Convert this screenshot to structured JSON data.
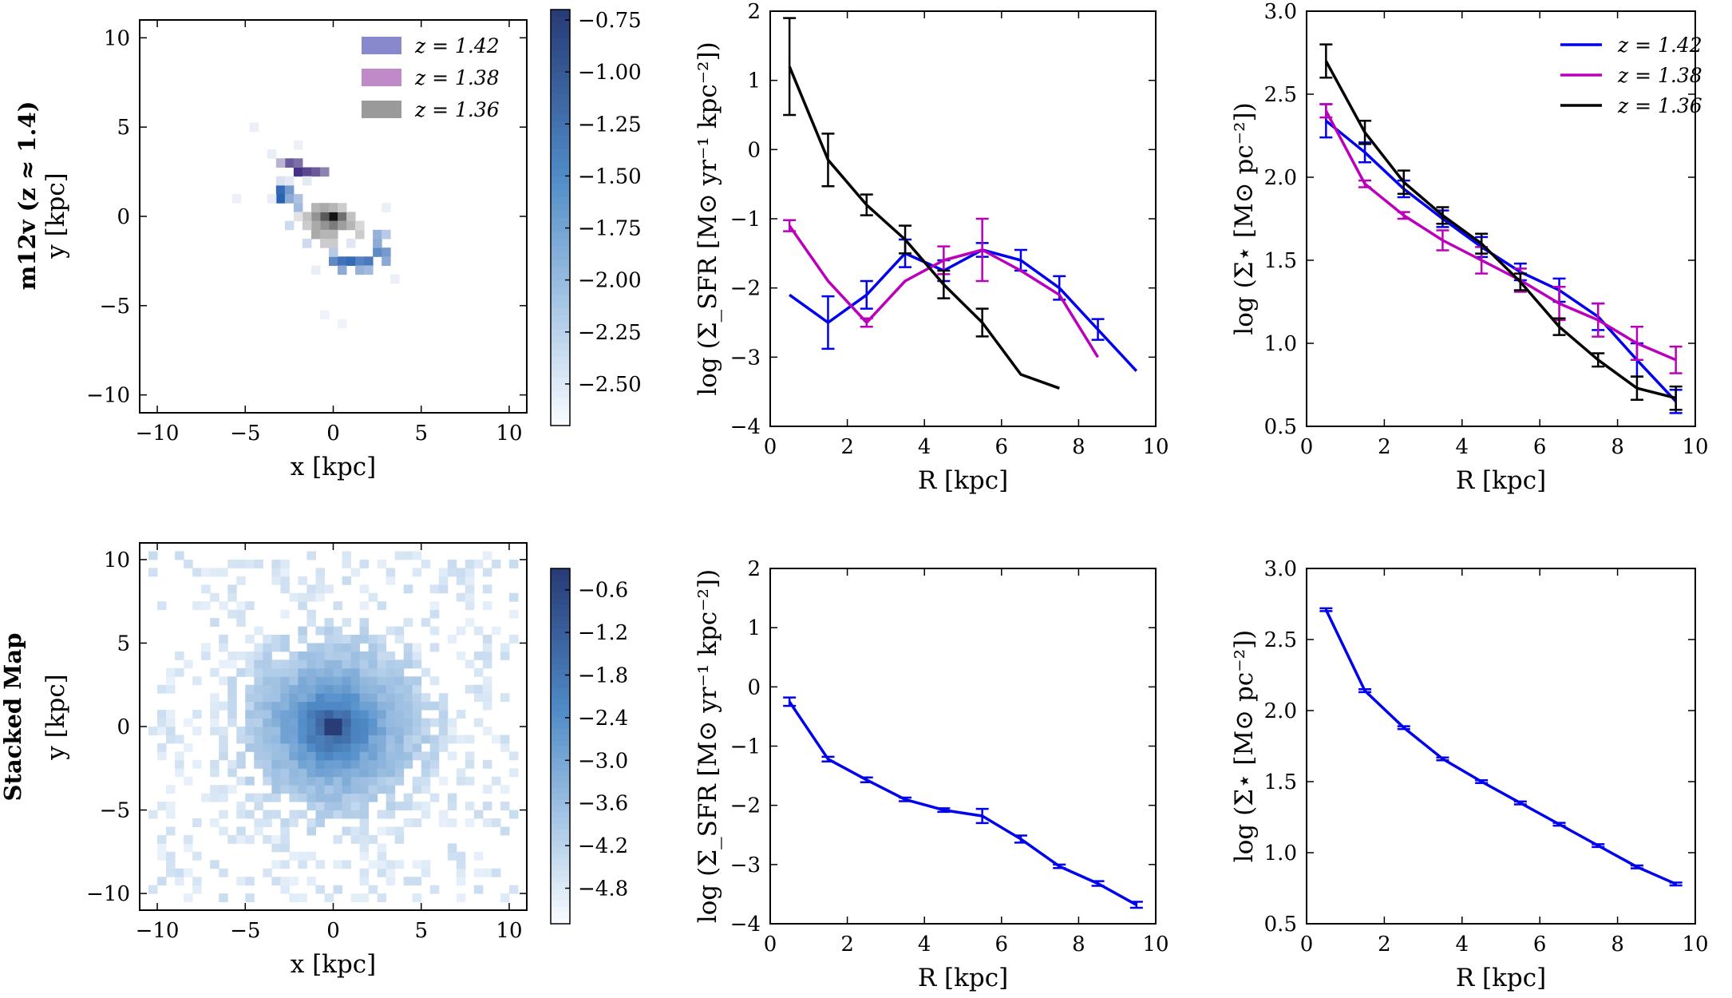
{
  "rows": [
    {
      "label_line1": "m12v (z ≈ 1.4)",
      "label_line2": "y [kpc]"
    },
    {
      "label_line1": "Stacked Map",
      "label_line2": "y [kpc]"
    }
  ],
  "chart_data": [
    {
      "type": "heatmap",
      "panel": "top-map",
      "xlabel": "x [kpc]",
      "ylabel": "y [kpc]",
      "xlim": [
        -11,
        11
      ],
      "ylim": [
        -11,
        11
      ],
      "xticks": [
        -10,
        -5,
        0,
        5,
        10
      ],
      "yticks": [
        -10,
        -5,
        0,
        5,
        10
      ],
      "legend": [
        {
          "label": "z = 1.42",
          "color": "#8888cc"
        },
        {
          "label": "z = 1.38",
          "color": "#c08ac8"
        },
        {
          "label": "z = 1.36",
          "color": "#9a9a9a"
        }
      ],
      "colorbar": {
        "range": [
          -2.7,
          -0.7
        ],
        "ticks": [
          "−0.75",
          "−1.00",
          "−1.25",
          "−1.50",
          "−1.75",
          "−2.00",
          "−2.25",
          "−2.50"
        ],
        "tick_values": [
          -0.75,
          -1.0,
          -1.25,
          -1.5,
          -1.75,
          -2.0,
          -2.25,
          -2.5
        ]
      },
      "cells": [
        {
          "x": -2.5,
          "y": 3.0,
          "v": 0.8,
          "c": "purple"
        },
        {
          "x": -2.0,
          "y": 2.5,
          "v": 1.0,
          "c": "purple"
        },
        {
          "x": -1.5,
          "y": 2.5,
          "v": 0.9,
          "c": "purple"
        },
        {
          "x": -1.0,
          "y": 2.5,
          "v": 0.8,
          "c": "purple"
        },
        {
          "x": -0.5,
          "y": 2.5,
          "v": 0.6,
          "c": "purple"
        },
        {
          "x": -3.0,
          "y": 3.0,
          "v": 0.35,
          "c": "purple"
        },
        {
          "x": -2.0,
          "y": 3.0,
          "v": 0.7,
          "c": "purple"
        },
        {
          "x": -3.0,
          "y": 1.5,
          "v": 0.9,
          "c": "blue"
        },
        {
          "x": -3.0,
          "y": 1.0,
          "v": 0.95,
          "c": "blue"
        },
        {
          "x": -2.5,
          "y": 1.5,
          "v": 0.6,
          "c": "blue"
        },
        {
          "x": -2.5,
          "y": 1.0,
          "v": 0.5,
          "c": "blue"
        },
        {
          "x": -2.0,
          "y": 0.5,
          "v": 0.4,
          "c": "blue"
        },
        {
          "x": -2.0,
          "y": 1.0,
          "v": 0.35,
          "c": "blue"
        },
        {
          "x": 0.0,
          "y": -2.5,
          "v": 0.7,
          "c": "blue"
        },
        {
          "x": 0.5,
          "y": -2.5,
          "v": 0.85,
          "c": "blue"
        },
        {
          "x": 1.0,
          "y": -2.5,
          "v": 0.9,
          "c": "blue"
        },
        {
          "x": 1.5,
          "y": -2.5,
          "v": 0.75,
          "c": "blue"
        },
        {
          "x": 2.0,
          "y": -2.5,
          "v": 0.8,
          "c": "blue"
        },
        {
          "x": 2.5,
          "y": -2.0,
          "v": 0.7,
          "c": "blue"
        },
        {
          "x": 3.0,
          "y": -2.0,
          "v": 0.6,
          "c": "blue"
        },
        {
          "x": 2.5,
          "y": -1.5,
          "v": 0.5,
          "c": "blue"
        },
        {
          "x": 2.5,
          "y": -1.0,
          "v": 0.45,
          "c": "blue"
        },
        {
          "x": 0.5,
          "y": -3.0,
          "v": 0.5,
          "c": "blue"
        },
        {
          "x": 1.5,
          "y": -3.0,
          "v": 0.45,
          "c": "blue"
        },
        {
          "x": 2.0,
          "y": -3.0,
          "v": 0.4,
          "c": "blue"
        },
        {
          "x": 3.0,
          "y": -2.5,
          "v": 0.5,
          "c": "blue"
        },
        {
          "x": 0.0,
          "y": -2.0,
          "v": 0.3,
          "c": "blue"
        },
        {
          "x": -1.5,
          "y": -1.5,
          "v": 0.2,
          "c": "blue"
        },
        {
          "x": -2.5,
          "y": -0.5,
          "v": 0.2,
          "c": "blue"
        },
        {
          "x": 3.0,
          "y": -1.0,
          "v": 0.3,
          "c": "blue"
        },
        {
          "x": -3.0,
          "y": 2.0,
          "v": 0.15,
          "c": "blue"
        },
        {
          "x": 0.0,
          "y": 0.0,
          "v": 1.0,
          "c": "gray"
        },
        {
          "x": -0.5,
          "y": 0.0,
          "v": 0.7,
          "c": "gray"
        },
        {
          "x": 0.5,
          "y": 0.0,
          "v": 0.6,
          "c": "gray"
        },
        {
          "x": 0.0,
          "y": -0.5,
          "v": 0.55,
          "c": "gray"
        },
        {
          "x": -0.5,
          "y": -0.5,
          "v": 0.45,
          "c": "gray"
        },
        {
          "x": 0.5,
          "y": -0.5,
          "v": 0.4,
          "c": "gray"
        },
        {
          "x": -1.0,
          "y": 0.0,
          "v": 0.45,
          "c": "gray"
        },
        {
          "x": -1.0,
          "y": -0.5,
          "v": 0.35,
          "c": "gray"
        },
        {
          "x": -1.0,
          "y": -1.0,
          "v": 0.35,
          "c": "gray"
        },
        {
          "x": -0.5,
          "y": -1.0,
          "v": 0.3,
          "c": "gray"
        },
        {
          "x": 0.0,
          "y": -1.0,
          "v": 0.3,
          "c": "gray"
        },
        {
          "x": 1.0,
          "y": -0.5,
          "v": 0.3,
          "c": "gray"
        },
        {
          "x": 1.0,
          "y": 0.0,
          "v": 0.25,
          "c": "gray"
        },
        {
          "x": -1.5,
          "y": 0.0,
          "v": 0.25,
          "c": "gray"
        },
        {
          "x": -1.5,
          "y": -0.5,
          "v": 0.2,
          "c": "gray"
        },
        {
          "x": -1.0,
          "y": 0.5,
          "v": 0.3,
          "c": "gray"
        },
        {
          "x": -0.5,
          "y": 0.5,
          "v": 0.35,
          "c": "gray"
        },
        {
          "x": 0.0,
          "y": 0.5,
          "v": 0.3,
          "c": "gray"
        },
        {
          "x": 0.5,
          "y": 0.5,
          "v": 0.2,
          "c": "gray"
        },
        {
          "x": 1.5,
          "y": -1.0,
          "v": 0.2,
          "c": "gray"
        },
        {
          "x": -0.5,
          "y": -1.5,
          "v": 0.2,
          "c": "gray"
        },
        {
          "x": 0.0,
          "y": -1.5,
          "v": 0.2,
          "c": "gray"
        },
        {
          "x": -2.0,
          "y": 0.0,
          "v": 0.1,
          "c": "gray"
        },
        {
          "x": 1.5,
          "y": -0.5,
          "v": 0.15,
          "c": "gray"
        },
        {
          "x": -2.5,
          "y": 2.0,
          "v": 0.1,
          "c": "blue"
        },
        {
          "x": -1.5,
          "y": 2.0,
          "v": 0.1,
          "c": "blue"
        },
        {
          "x": 1.0,
          "y": -1.5,
          "v": 0.12,
          "c": "blue"
        },
        {
          "x": -1.0,
          "y": -3.0,
          "v": 0.08,
          "c": "blue"
        },
        {
          "x": -3.5,
          "y": 1.0,
          "v": 0.08,
          "c": "blue"
        },
        {
          "x": -4.5,
          "y": 5.0,
          "v": 0.07,
          "c": "blue"
        },
        {
          "x": -5.5,
          "y": 1.0,
          "v": 0.06,
          "c": "blue"
        },
        {
          "x": -0.5,
          "y": -5.5,
          "v": 0.05,
          "c": "blue"
        },
        {
          "x": 0.5,
          "y": -6.0,
          "v": 0.05,
          "c": "blue"
        },
        {
          "x": 3.5,
          "y": -3.5,
          "v": 0.07,
          "c": "blue"
        },
        {
          "x": 3.0,
          "y": 0.5,
          "v": 0.07,
          "c": "blue"
        },
        {
          "x": -3.5,
          "y": 3.5,
          "v": 0.08,
          "c": "blue"
        },
        {
          "x": -2.0,
          "y": 4.0,
          "v": 0.06,
          "c": "blue"
        }
      ]
    },
    {
      "type": "line",
      "panel": "top-sfr",
      "xlabel": "R [kpc]",
      "ylabel": "log (Σ_SFR [M⊙ yr⁻¹ kpc⁻²])",
      "xlim": [
        0,
        10
      ],
      "ylim": [
        -4,
        2
      ],
      "xticks": [
        0,
        2,
        4,
        6,
        8,
        10
      ],
      "yticks": [
        -4,
        -3,
        -2,
        -1,
        0,
        1,
        2
      ],
      "series": [
        {
          "name": "z = 1.42",
          "color": "#0000ee",
          "x": [
            0.5,
            1.5,
            2.5,
            3.5,
            4.5,
            5.5,
            6.5,
            7.5,
            8.5,
            9.5
          ],
          "y": [
            -2.1,
            -2.5,
            -2.1,
            -1.5,
            -1.75,
            -1.45,
            -1.6,
            -2.0,
            -2.6,
            -3.2
          ],
          "err": [
            0,
            0.38,
            0.2,
            0.2,
            0.15,
            0.1,
            0.15,
            0.17,
            0.15,
            0
          ]
        },
        {
          "name": "z = 1.38",
          "color": "#bb00bb",
          "x": [
            0.5,
            1.5,
            2.5,
            3.5,
            4.5,
            5.5,
            6.5,
            7.5,
            8.5
          ],
          "y": [
            -1.1,
            -1.9,
            -2.5,
            -1.9,
            -1.6,
            -1.45,
            -1.75,
            -2.1,
            -3.0
          ],
          "err": [
            0.08,
            0,
            0.06,
            0,
            0.2,
            0.45,
            0,
            0,
            0
          ]
        },
        {
          "name": "z = 1.36",
          "color": "#000000",
          "x": [
            0.5,
            1.5,
            2.5,
            3.5,
            4.5,
            5.5,
            6.5,
            7.5
          ],
          "y": [
            1.2,
            -0.15,
            -0.8,
            -1.3,
            -1.95,
            -2.5,
            -3.25,
            -3.45
          ],
          "err": [
            0.7,
            0.38,
            0.15,
            0.2,
            0.2,
            0.2,
            0,
            0
          ]
        }
      ]
    },
    {
      "type": "line",
      "panel": "top-stellar",
      "xlabel": "R [kpc]",
      "ylabel": "log (Σ⋆ [M⊙ pc⁻²])",
      "xlim": [
        0,
        10
      ],
      "ylim": [
        0.5,
        3.0
      ],
      "xticks": [
        0,
        2,
        4,
        6,
        8,
        10
      ],
      "yticks": [
        0.5,
        1.0,
        1.5,
        2.0,
        2.5,
        3.0
      ],
      "legend": [
        {
          "label": "z = 1.42",
          "color": "#0000ee"
        },
        {
          "label": "z = 1.38",
          "color": "#bb00bb"
        },
        {
          "label": "z = 1.36",
          "color": "#000000"
        }
      ],
      "series": [
        {
          "name": "z = 1.42",
          "color": "#0000ee",
          "x": [
            0.5,
            1.5,
            2.5,
            3.5,
            4.5,
            5.5,
            6.5,
            7.5,
            8.5,
            9.5
          ],
          "y": [
            2.34,
            2.15,
            1.93,
            1.75,
            1.58,
            1.43,
            1.32,
            1.16,
            0.9,
            0.65
          ],
          "err": [
            0.1,
            0.06,
            0.05,
            0.05,
            0.06,
            0.05,
            0.07,
            0.08,
            0.1,
            0.07
          ]
        },
        {
          "name": "z = 1.38",
          "color": "#bb00bb",
          "x": [
            0.5,
            1.5,
            2.5,
            3.5,
            4.5,
            5.5,
            6.5,
            7.5,
            8.5,
            9.5
          ],
          "y": [
            2.4,
            1.96,
            1.77,
            1.62,
            1.5,
            1.38,
            1.24,
            1.14,
            1.0,
            0.9
          ],
          "err": [
            0.04,
            0.02,
            0.02,
            0.06,
            0.08,
            0.07,
            0.1,
            0.1,
            0.1,
            0.08
          ]
        },
        {
          "name": "z = 1.36",
          "color": "#000000",
          "x": [
            0.5,
            1.5,
            2.5,
            3.5,
            4.5,
            5.5,
            6.5,
            7.5,
            8.5,
            9.5
          ],
          "y": [
            2.7,
            2.27,
            1.97,
            1.77,
            1.6,
            1.37,
            1.1,
            0.9,
            0.73,
            0.67
          ],
          "err": [
            0.1,
            0.07,
            0.07,
            0.05,
            0.06,
            0.05,
            0.05,
            0.04,
            0.07,
            0.07
          ]
        }
      ]
    },
    {
      "type": "heatmap",
      "panel": "bottom-map",
      "xlabel": "x [kpc]",
      "ylabel": "y [kpc]",
      "xlim": [
        -11,
        11
      ],
      "ylim": [
        -11,
        11
      ],
      "xticks": [
        -10,
        -5,
        0,
        5,
        10
      ],
      "yticks": [
        -10,
        -5,
        0,
        5,
        10
      ],
      "colorbar": {
        "range": [
          -5.3,
          -0.3
        ],
        "ticks": [
          "−0.6",
          "−1.2",
          "−1.8",
          "−2.4",
          "−3.0",
          "−3.6",
          "−4.2",
          "−4.8"
        ],
        "tick_values": [
          -0.6,
          -1.2,
          -1.8,
          -2.4,
          -3.0,
          -3.6,
          -4.2,
          -4.8
        ]
      },
      "profile": {
        "scale": 3.6,
        "core_value": 1.0,
        "seed": 7
      }
    },
    {
      "type": "line",
      "panel": "bottom-sfr",
      "xlabel": "R [kpc]",
      "ylabel": "log (Σ_SFR [M⊙ yr⁻¹ kpc⁻²])",
      "xlim": [
        0,
        10
      ],
      "ylim": [
        -4,
        2
      ],
      "xticks": [
        0,
        2,
        4,
        6,
        8,
        10
      ],
      "yticks": [
        -4,
        -3,
        -2,
        -1,
        0,
        1,
        2
      ],
      "series": [
        {
          "name": "stacked",
          "color": "#0000ee",
          "x": [
            0.5,
            1.5,
            2.5,
            3.5,
            4.5,
            5.5,
            6.5,
            7.5,
            8.5,
            9.5
          ],
          "y": [
            -0.25,
            -1.22,
            -1.57,
            -1.9,
            -2.08,
            -2.18,
            -2.57,
            -3.03,
            -3.32,
            -3.68
          ],
          "err": [
            0.07,
            0.04,
            0.04,
            0.03,
            0.03,
            0.12,
            0.06,
            0.03,
            0.04,
            0.05
          ]
        }
      ]
    },
    {
      "type": "line",
      "panel": "bottom-stellar",
      "xlabel": "R [kpc]",
      "ylabel": "log (Σ⋆ [M⊙ pc⁻²])",
      "xlim": [
        0,
        10
      ],
      "ylim": [
        0.5,
        3.0
      ],
      "xticks": [
        0,
        2,
        4,
        6,
        8,
        10
      ],
      "yticks": [
        0.5,
        1.0,
        1.5,
        2.0,
        2.5,
        3.0
      ],
      "series": [
        {
          "name": "stacked",
          "color": "#0000ee",
          "x": [
            0.5,
            1.5,
            2.5,
            3.5,
            4.5,
            5.5,
            6.5,
            7.5,
            8.5,
            9.5
          ],
          "y": [
            2.71,
            2.14,
            1.88,
            1.66,
            1.5,
            1.35,
            1.2,
            1.05,
            0.9,
            0.78
          ],
          "err": [
            0.01,
            0.01,
            0.01,
            0.01,
            0.01,
            0.01,
            0.01,
            0.01,
            0.01,
            0.01
          ]
        }
      ]
    }
  ]
}
